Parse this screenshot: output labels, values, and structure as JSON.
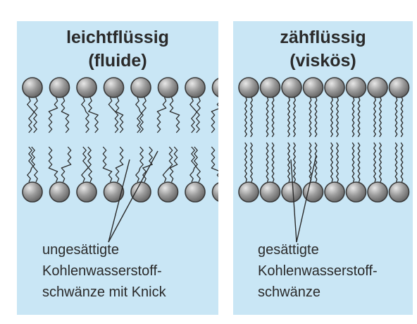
{
  "colors": {
    "panel_background": "#c9e6f5",
    "head_fill": "#9a9a9a",
    "head_stroke": "#3a3a3a",
    "tail_stroke": "#2a2a2a",
    "text": "#2a2a2a"
  },
  "panels": [
    {
      "id": "fluid",
      "title_line1": "leichtflüssig",
      "title_line2": "(fluide)",
      "caption_line1": "ungesättigte",
      "caption_line2": "Kohlenwasserstoff-",
      "caption_line3": "schwänze mit Knick",
      "tail_type": "unsaturated-kinked",
      "lipids_per_layer": 8
    },
    {
      "id": "viscous",
      "title_line1": "zähflüssig",
      "title_line2": "(viskös)",
      "caption_line1": "gesättigte",
      "caption_line2": "Kohlenwasserstoff-",
      "caption_line3": "schwänze",
      "tail_type": "saturated-straight",
      "lipids_per_layer": 8
    }
  ]
}
